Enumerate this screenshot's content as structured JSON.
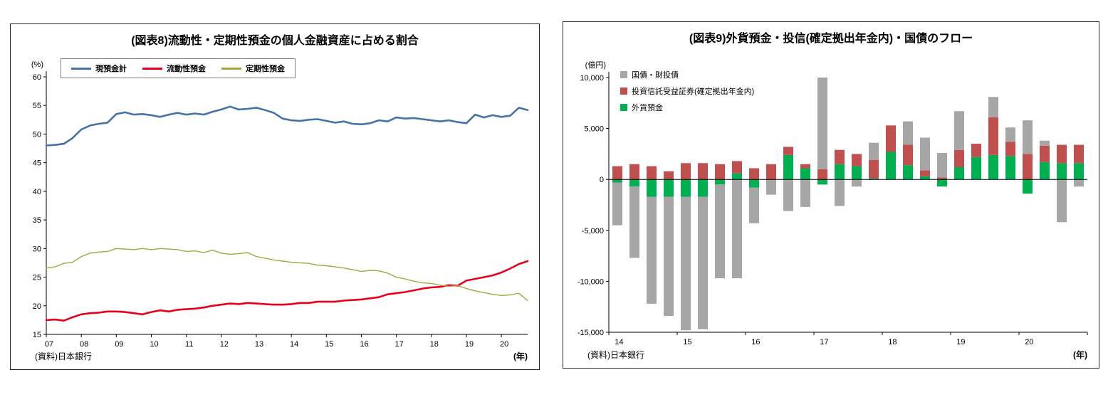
{
  "panels": {
    "left": {
      "source": "(資料)日本銀行",
      "x_unit": "(年)"
    },
    "right": {
      "source": "(資料)日本銀行",
      "x_unit": "(年)"
    }
  },
  "chart_data": [
    {
      "type": "line",
      "title": "(図表8)流動性・定期性預金の個人金融資産に占める割合",
      "ylabel": "(%)",
      "xlabel": "(年)",
      "ylim": [
        15,
        60
      ],
      "ytick_step": 5,
      "grid": false,
      "legend_position": "top-left-inside",
      "x_start_year": 2007,
      "x_step_years": 0.25,
      "x_tick_labels": [
        "07",
        "08",
        "09",
        "10",
        "11",
        "12",
        "13",
        "14",
        "15",
        "16",
        "17",
        "18",
        "19",
        "20"
      ],
      "series": [
        {
          "name": "現預金計",
          "color": "#4572A7",
          "line_width": 2.6,
          "values": [
            48.0,
            48.1,
            48.3,
            49.3,
            50.8,
            51.5,
            51.8,
            52.0,
            53.5,
            53.8,
            53.4,
            53.5,
            53.3,
            53.0,
            53.4,
            53.7,
            53.4,
            53.6,
            53.4,
            53.9,
            54.3,
            54.8,
            54.3,
            54.4,
            54.6,
            54.2,
            53.7,
            52.7,
            52.4,
            52.3,
            52.5,
            52.6,
            52.3,
            52.0,
            52.2,
            51.8,
            51.7,
            51.9,
            52.4,
            52.2,
            52.9,
            52.7,
            52.8,
            52.6,
            52.4,
            52.2,
            52.4,
            52.1,
            51.9,
            53.4,
            52.9,
            53.3,
            53.0,
            53.2,
            54.6,
            54.2
          ]
        },
        {
          "name": "流動性預金",
          "color": "#E8001C",
          "line_width": 2.6,
          "values": [
            17.5,
            17.6,
            17.4,
            18.0,
            18.5,
            18.7,
            18.8,
            19.0,
            19.0,
            18.9,
            18.7,
            18.5,
            18.9,
            19.2,
            19.0,
            19.3,
            19.4,
            19.5,
            19.7,
            20.0,
            20.2,
            20.4,
            20.3,
            20.5,
            20.4,
            20.3,
            20.2,
            20.2,
            20.3,
            20.5,
            20.5,
            20.7,
            20.7,
            20.7,
            20.9,
            21.0,
            21.1,
            21.3,
            21.5,
            22.0,
            22.2,
            22.4,
            22.7,
            23.0,
            23.2,
            23.3,
            23.6,
            23.5,
            24.4,
            24.7,
            25.0,
            25.3,
            25.8,
            26.5,
            27.3,
            27.8
          ]
        },
        {
          "name": "定期性預金",
          "color": "#A3A73E",
          "line_width": 1.4,
          "values": [
            26.6,
            26.8,
            27.4,
            27.6,
            28.6,
            29.2,
            29.4,
            29.5,
            30.0,
            29.9,
            29.8,
            30.0,
            29.8,
            30.0,
            29.9,
            29.8,
            29.5,
            29.6,
            29.3,
            29.7,
            29.2,
            29.0,
            29.1,
            29.3,
            28.6,
            28.3,
            28.0,
            27.8,
            27.6,
            27.5,
            27.4,
            27.1,
            27.0,
            26.8,
            26.6,
            26.3,
            26.0,
            26.2,
            26.1,
            25.7,
            25.0,
            24.7,
            24.3,
            24.0,
            23.9,
            23.6,
            23.4,
            23.5,
            23.0,
            22.6,
            22.3,
            22.0,
            21.8,
            21.9,
            22.2,
            20.9
          ]
        }
      ]
    },
    {
      "type": "bar",
      "title": "(図表9)外貨預金・投信(確定拠出年金内)・国債のフロー",
      "ylabel": "(億円)",
      "xlabel": "(年)",
      "ylim": [
        -15000,
        10000
      ],
      "ytick_step": 5000,
      "grid": false,
      "stacked": true,
      "bars_per_year": 4,
      "x_tick_labels": [
        "14",
        "15",
        "16",
        "17",
        "18",
        "19",
        "20"
      ],
      "series": [
        {
          "name": "国債・財投債",
          "color": "#A6A6A6",
          "values": [
            -4200,
            -7000,
            -10500,
            -11700,
            -13100,
            -13000,
            -9200,
            -9700,
            -3500,
            -1500,
            -3100,
            -2700,
            9000,
            -2600,
            -700,
            1700,
            0,
            2300,
            3200,
            2400,
            3800,
            0,
            2000,
            1400,
            3300,
            500,
            -4200,
            -700
          ]
        },
        {
          "name": "投資信託受益証券(確定拠出年金内)",
          "color": "#C0504D",
          "values": [
            1300,
            1500,
            1300,
            800,
            1600,
            1600,
            1500,
            1200,
            1100,
            1500,
            800,
            400,
            1000,
            1400,
            1200,
            1800,
            2600,
            2000,
            600,
            200,
            1700,
            1300,
            3700,
            1400,
            2500,
            1600,
            1800,
            1800
          ]
        },
        {
          "name": "外貨預金",
          "color": "#00B050",
          "values": [
            -300,
            -700,
            -1700,
            -1700,
            -1700,
            -1700,
            -500,
            600,
            -800,
            0,
            2400,
            1100,
            -500,
            1500,
            1300,
            100,
            2700,
            1400,
            300,
            -700,
            1200,
            2200,
            2400,
            2300,
            -1400,
            1700,
            1600,
            1600
          ]
        }
      ]
    }
  ]
}
